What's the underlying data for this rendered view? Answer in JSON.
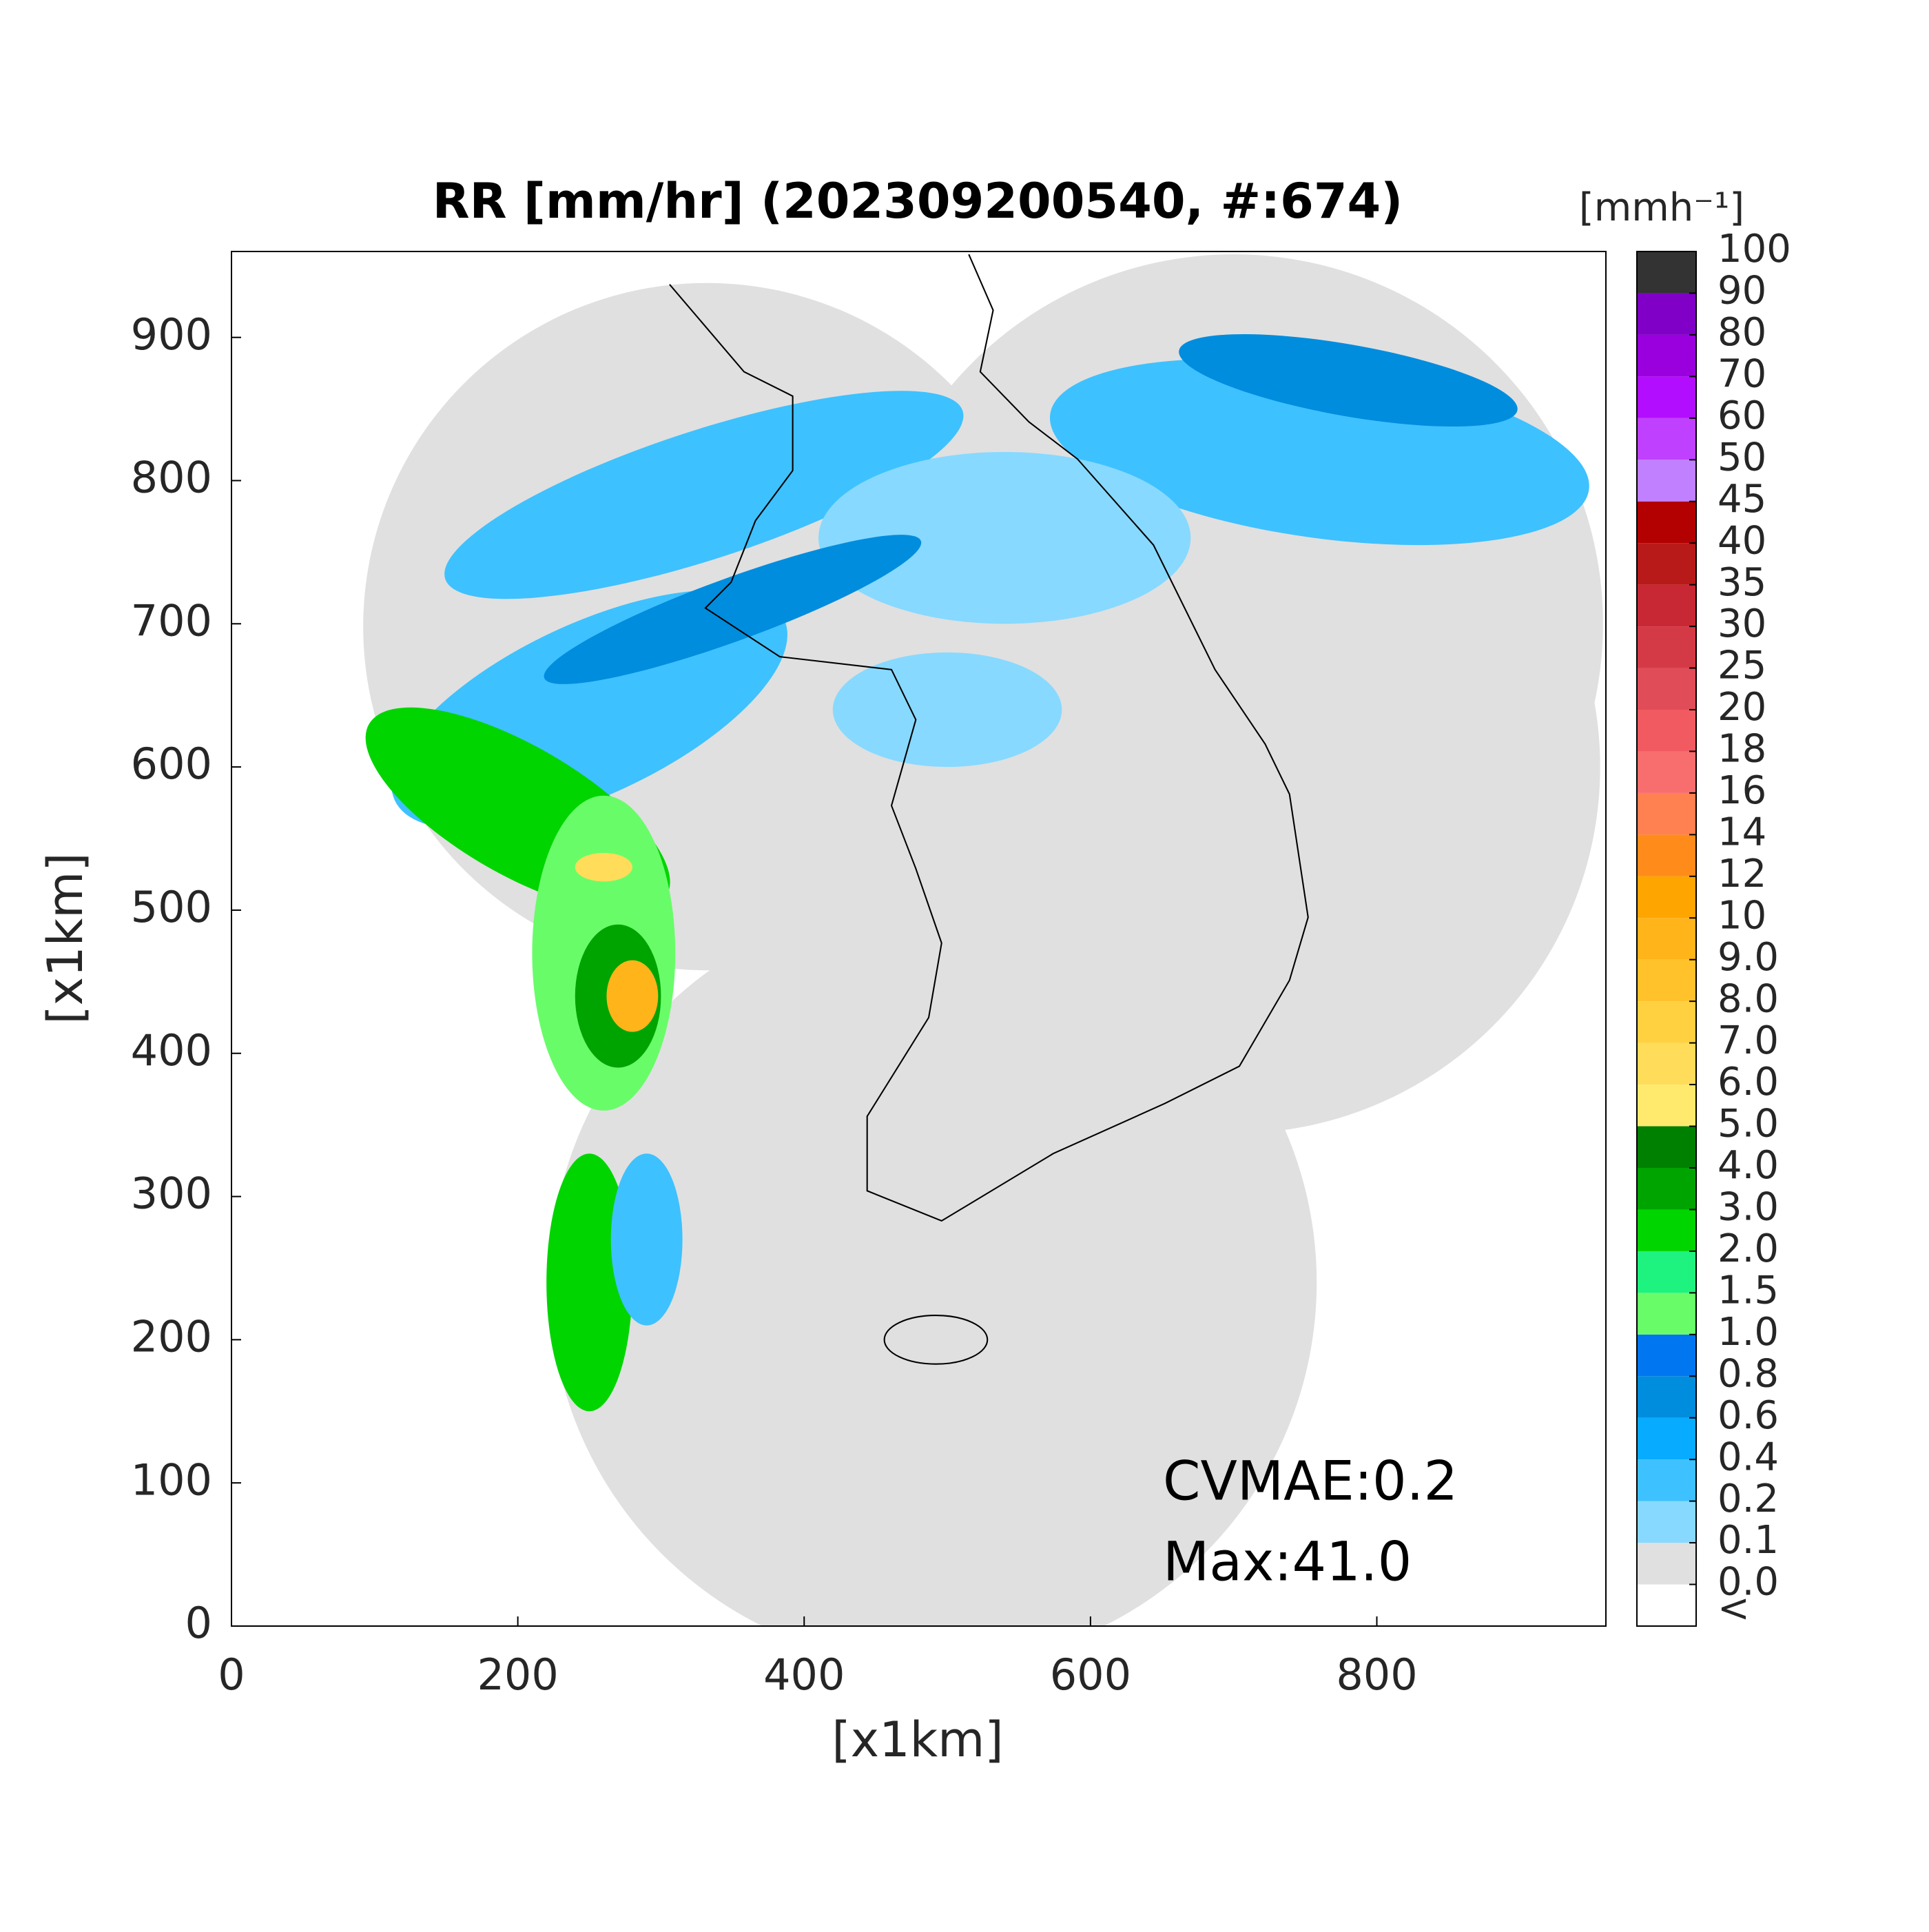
{
  "chart_data": {
    "type": "heatmap",
    "title": "RR [mm/hr] (202309200540, #:674)",
    "xlabel": "[x1km]",
    "ylabel": "[x1km]",
    "xlim": [
      0,
      960
    ],
    "ylim": [
      0,
      960
    ],
    "xticks": [
      0,
      200,
      400,
      600,
      800
    ],
    "yticks": [
      0,
      100,
      200,
      300,
      400,
      500,
      600,
      700,
      800,
      900
    ],
    "annotations": [
      "CVMAE:0.2",
      "Max:41.0"
    ],
    "colorbar": {
      "label": "[mmh⁻¹]",
      "under_label": "<",
      "under_color": "#ffffff",
      "ticks": [
        {
          "value": 0,
          "label": "0.0"
        },
        0.1,
        0.2,
        0.4,
        0.6,
        0.8,
        {
          "value": 1,
          "label": "1.0"
        },
        1.5,
        {
          "value": 2,
          "label": "2.0"
        },
        {
          "value": 3,
          "label": "3.0"
        },
        {
          "value": 4,
          "label": "4.0"
        },
        {
          "value": 5,
          "label": "5.0"
        },
        {
          "value": 6,
          "label": "6.0"
        },
        {
          "value": 7,
          "label": "7.0"
        },
        {
          "value": 8,
          "label": "8.0"
        },
        {
          "value": 9,
          "label": "9.0"
        },
        10,
        12,
        14,
        16,
        18,
        20,
        25,
        30,
        35,
        40,
        45,
        50,
        60,
        70,
        80,
        90,
        100
      ],
      "colors": [
        "#e0e0e0",
        "#87d9ff",
        "#3ec1ff",
        "#07abff",
        "#008dde",
        "#0077f0",
        "#69fc69",
        "#1ef27f",
        "#00d500",
        "#00a400",
        "#008000",
        "#ffea6e",
        "#ffdc5a",
        "#ffd040",
        "#ffc22a",
        "#ffb41a",
        "#ffa500",
        "#ff8c1a",
        "#ff8050",
        "#f86e6e",
        "#f05a60",
        "#e04d58",
        "#d43a46",
        "#c82833",
        "#b81a1a",
        "#b30000",
        "#c080ff",
        "#c040ff",
        "#b20dff",
        "#9900dd",
        "#8000c8",
        "#333333"
      ]
    }
  }
}
